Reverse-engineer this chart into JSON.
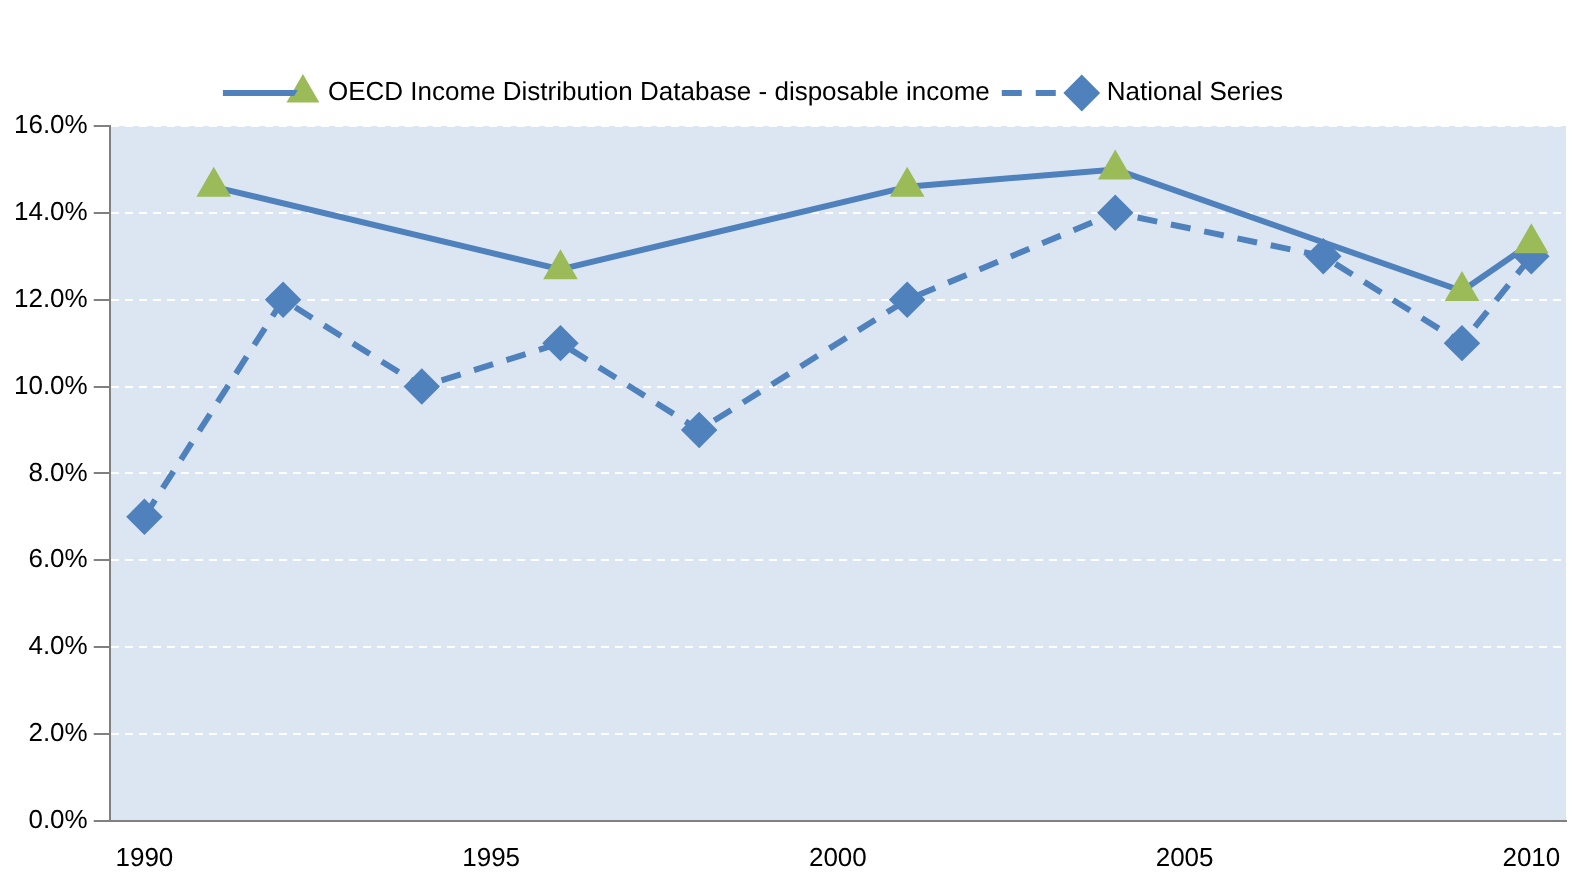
{
  "chart_data": {
    "type": "line",
    "legend": "top",
    "grid": "y",
    "xlim": [
      1989.5,
      2010.5
    ],
    "xticks": [
      1990,
      1995,
      2000,
      2005,
      2010
    ],
    "ylim": [
      0,
      16
    ],
    "yticks": [
      {
        "value": 0,
        "label": "0.0%"
      },
      {
        "value": 2,
        "label": "2.0%"
      },
      {
        "value": 4,
        "label": "4.0%"
      },
      {
        "value": 6,
        "label": "6.0%"
      },
      {
        "value": 8,
        "label": "8.0%"
      },
      {
        "value": 10,
        "label": "10.0%"
      },
      {
        "value": 12,
        "label": "12.0%"
      },
      {
        "value": 14,
        "label": "14.0%"
      },
      {
        "value": 16,
        "label": "16.0%"
      }
    ],
    "series": [
      {
        "name": "OECD Income Distribution Database - disposable income",
        "color": "#4f81bd",
        "colors": [
          "#9bbb59",
          "#9bbb59",
          "#9bbb59",
          "#9bbb59",
          "#9bbb59",
          "#9bbb59"
        ],
        "marker": "triangle",
        "line_style": "solid",
        "x": [
          1991,
          1996,
          2001,
          2004,
          2009,
          2010
        ],
        "values": [
          14.6,
          12.7,
          14.6,
          15.0,
          12.2,
          13.3
        ]
      },
      {
        "name": "National Series",
        "color": "#4f81bd",
        "marker": "diamond",
        "line_style": "dashed",
        "x": [
          1990,
          1992,
          1994,
          1996,
          1998,
          2001,
          2004,
          2007,
          2009,
          2010
        ],
        "values": [
          7,
          12,
          10,
          11,
          9,
          12,
          14,
          13,
          11,
          13
        ]
      }
    ]
  }
}
